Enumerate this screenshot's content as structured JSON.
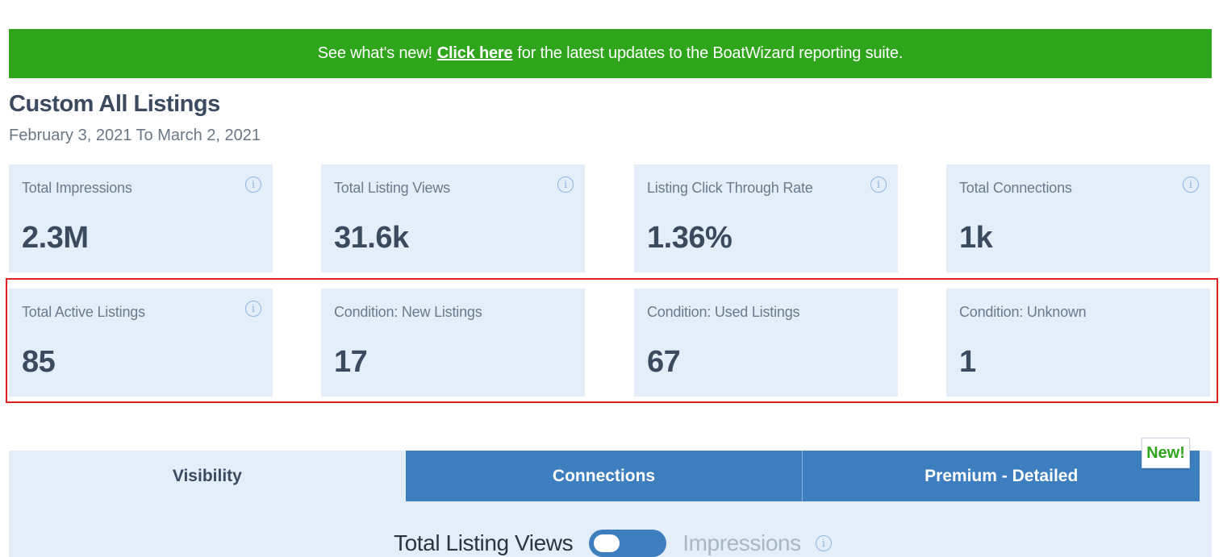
{
  "banner": {
    "prefix": "See what's new!",
    "link_label": "Click here",
    "suffix": "for the latest updates to the BoatWizard reporting suite."
  },
  "page": {
    "title": "Custom All Listings",
    "date_range": "February 3, 2021 To March 2, 2021"
  },
  "metrics_row1": [
    {
      "label": "Total Impressions",
      "value": "2.3M",
      "info_icon": "info-icon"
    },
    {
      "label": "Total Listing Views",
      "value": "31.6k",
      "info_icon": "info-icon"
    },
    {
      "label": "Listing Click Through Rate",
      "value": "1.36%",
      "info_icon": "info-icon"
    },
    {
      "label": "Total Connections",
      "value": "1k",
      "info_icon": "info-icon"
    }
  ],
  "metrics_row2": [
    {
      "label": "Total Active Listings",
      "value": "85",
      "info_icon": "info-icon"
    },
    {
      "label": "Condition: New Listings",
      "value": "17"
    },
    {
      "label": "Condition: Used Listings",
      "value": "67"
    },
    {
      "label": "Condition: Unknown",
      "value": "1"
    }
  ],
  "tabs": [
    {
      "label": "Visibility",
      "state": "inactive"
    },
    {
      "label": "Connections",
      "state": "active"
    },
    {
      "label": "Premium - Detailed",
      "state": "active"
    }
  ],
  "new_badge": "New!",
  "view_toggle": {
    "option_a": "Total Listing Views",
    "option_b": "Impressions",
    "selected": "option_a"
  },
  "colors": {
    "banner_green": "#2ea51b",
    "card_bg": "#e4eef9",
    "tab_blue": "#3d7ebe",
    "highlight_red": "#e02020",
    "text_dark": "#3b4a5e"
  },
  "info_glyph": "i"
}
